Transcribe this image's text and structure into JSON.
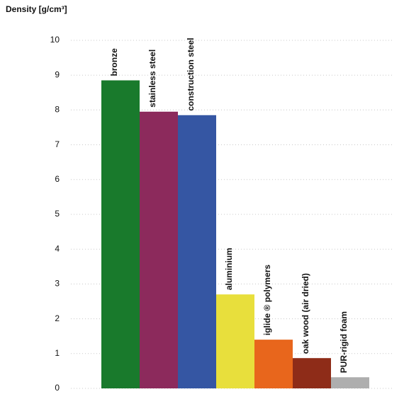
{
  "chart_data": {
    "type": "bar",
    "title": "Density [g/cm³]",
    "categories": [
      "bronze",
      "stainless steel",
      "construction steel",
      "aluminium",
      "iglide ® polymers",
      "oak wood (air dried)",
      "PUR-rigid foam"
    ],
    "values": [
      8.85,
      7.95,
      7.85,
      2.7,
      1.4,
      0.87,
      0.32
    ],
    "colors": [
      "#197a2c",
      "#8c2a5c",
      "#3556a3",
      "#e8df3c",
      "#e8661c",
      "#8e2c18",
      "#aeaeae"
    ],
    "ylim": [
      0,
      10
    ],
    "yticks": [
      0,
      1,
      2,
      3,
      4,
      5,
      6,
      7,
      8,
      9,
      10
    ],
    "grid": true
  }
}
